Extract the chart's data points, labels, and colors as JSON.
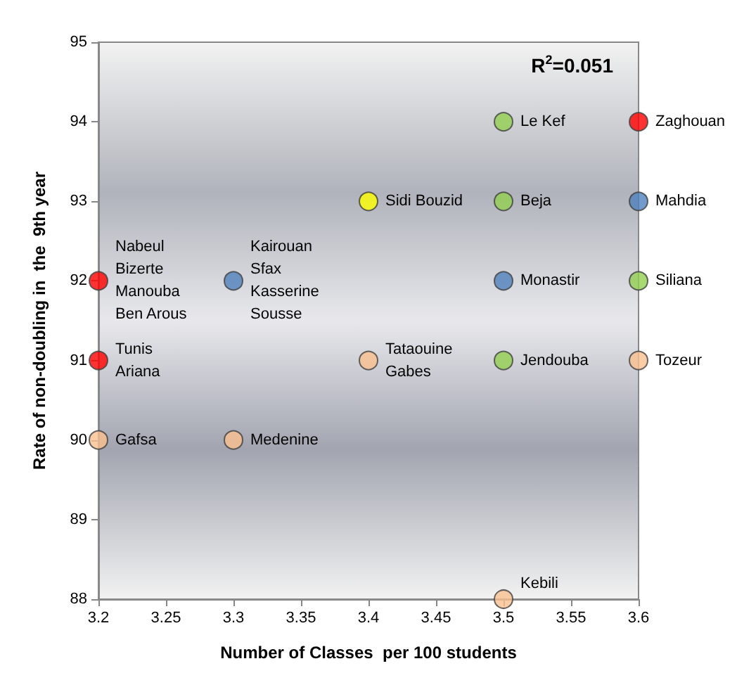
{
  "chart_data": {
    "type": "scatter",
    "xlabel": "Number of Classes  per 100 students",
    "ylabel": "Rate of non-doubling in  the  9th year",
    "x": [
      3.2,
      3.2,
      3.2,
      3.3,
      3.3,
      3.4,
      3.4,
      3.5,
      3.5,
      3.5,
      3.5,
      3.5,
      3.6,
      3.6,
      3.6,
      3.6
    ],
    "values": [
      92,
      91,
      90,
      92,
      90,
      93,
      91,
      94,
      93,
      92,
      91,
      88,
      94,
      93,
      92,
      91
    ],
    "colors": [
      "#ff0000",
      "#ff0000",
      "#fac090",
      "#4f81bd",
      "#fac090",
      "#ffff00",
      "#fac090",
      "#92d050",
      "#92d050",
      "#4f81bd",
      "#92d050",
      "#fac090",
      "#ff0000",
      "#4f81bd",
      "#92d050",
      "#fac090"
    ],
    "xlim": [
      3.2,
      3.6
    ],
    "xticks": [
      3.2,
      3.25,
      3.3,
      3.35,
      3.4,
      3.45,
      3.5,
      3.55,
      3.6
    ],
    "ylim": [
      88,
      95
    ],
    "yticks": [
      88,
      89,
      90,
      91,
      92,
      93,
      94,
      95
    ],
    "grid": false,
    "marker": "circle",
    "annotations": [
      "R$^{2}$=0.051",
      {
        "text": "Nabeul",
        "x": 3.2,
        "y": 92
      },
      {
        "text": "Bizerte",
        "x": 3.2,
        "y": 92
      },
      {
        "text": "Manouba",
        "x": 3.2,
        "y": 92
      },
      {
        "text": "Ben Arous",
        "x": 3.2,
        "y": 92
      },
      {
        "text": "Tunis",
        "x": 3.2,
        "y": 91
      },
      {
        "text": "Ariana",
        "x": 3.2,
        "y": 91
      },
      {
        "text": "Gafsa",
        "x": 3.2,
        "y": 90
      },
      {
        "text": "Kairouan",
        "x": 3.3,
        "y": 92
      },
      {
        "text": "Sfax",
        "x": 3.3,
        "y": 92
      },
      {
        "text": "Kasserine",
        "x": 3.3,
        "y": 92
      },
      {
        "text": "Sousse",
        "x": 3.3,
        "y": 92
      },
      {
        "text": "Medenine",
        "x": 3.3,
        "y": 90
      },
      {
        "text": "Sidi Bouzid",
        "x": 3.4,
        "y": 93
      },
      {
        "text": "Tataouine",
        "x": 3.4,
        "y": 91
      },
      {
        "text": "Gabes",
        "x": 3.4,
        "y": 91
      },
      {
        "text": "Le Kef",
        "x": 3.5,
        "y": 94
      },
      {
        "text": "Beja",
        "x": 3.5,
        "y": 93
      },
      {
        "text": "Monastir",
        "x": 3.5,
        "y": 92
      },
      {
        "text": "Jendouba",
        "x": 3.5,
        "y": 91
      },
      {
        "text": "Kebili",
        "x": 3.5,
        "y": 88
      },
      {
        "text": "Zaghouan",
        "x": 3.6,
        "y": 94
      },
      {
        "text": "Mahdia",
        "x": 3.6,
        "y": 93
      },
      {
        "text": "Siliana",
        "x": 3.6,
        "y": 92
      },
      {
        "text": "Tozeur",
        "x": 3.6,
        "y": 91
      }
    ]
  }
}
